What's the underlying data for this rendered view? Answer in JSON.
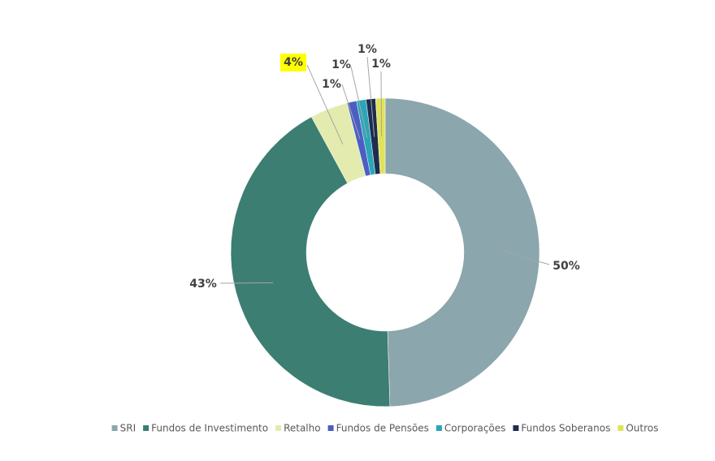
{
  "chart_data": {
    "type": "donut",
    "categories": [
      "SRI",
      "Fundos de Investimento",
      "Retalho",
      "Fundos de Pensões",
      "Corporações",
      "Fundos Soberanos",
      "Outros"
    ],
    "values": [
      50,
      43,
      4,
      1,
      1,
      1,
      1
    ],
    "value_labels": [
      "50%",
      "43%",
      "4%",
      "1%",
      "1%",
      "1%",
      "1%"
    ],
    "colors": [
      "#8ba6ac",
      "#3c7e72",
      "#e4ebae",
      "#4a5ec4",
      "#2ba6b7",
      "#1c2d50",
      "#e2e258"
    ],
    "legend": "bottom"
  }
}
